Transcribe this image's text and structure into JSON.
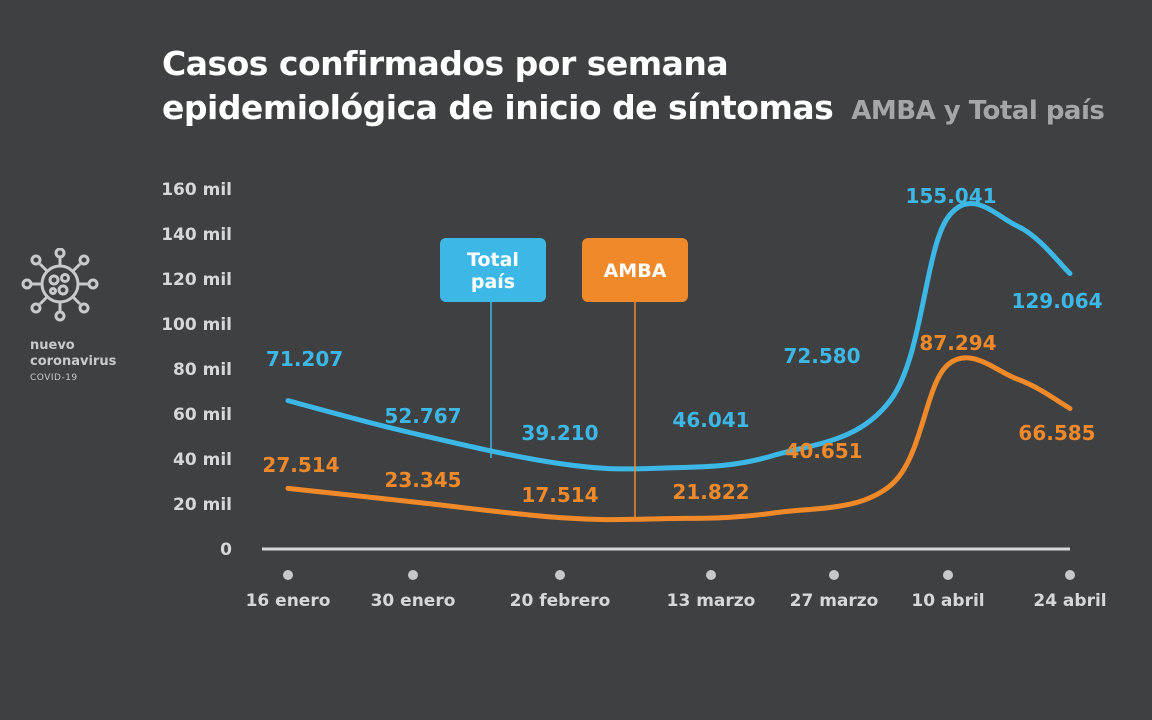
{
  "title": {
    "line1": "Casos confirmados por semana",
    "line2": "epidemiológica de inicio de síntomas",
    "subtitle": "AMBA y Total país"
  },
  "logo": {
    "icon": "virus-icon",
    "line1": "nuevo",
    "line2": "coronavirus",
    "line3": "COVID-19"
  },
  "colors": {
    "background": "#3f4042",
    "total": "#3db8e6",
    "amba": "#f0892a",
    "axis": "#d6d7d9",
    "tick_text": "#d6d7d9"
  },
  "chart_data": {
    "type": "line",
    "y_tick_labels": [
      "0",
      "20 mil",
      "40 mil",
      "60 mil",
      "80 mil",
      "100 mil",
      "120 mil",
      "140 mil",
      "160 mil"
    ],
    "ylim": [
      0,
      160000
    ],
    "categories": [
      "16 enero",
      "30 enero",
      "20 febrero",
      "13 marzo",
      "27 marzo",
      "10 abril",
      "24 abril"
    ],
    "series": [
      {
        "name": "Total país",
        "color": "#3db8e6",
        "labels": [
          "71.207",
          "52.767",
          "39.210",
          "46.041",
          "72.580",
          "155.041",
          "129.064"
        ],
        "curve": [
          [
            "2021-01-16",
            65500
          ],
          [
            "2021-01-30",
            51000
          ],
          [
            "2021-02-20",
            37500
          ],
          [
            "2021-03-06",
            35500
          ],
          [
            "2021-03-20",
            41000
          ],
          [
            "2021-04-03",
            66000
          ],
          [
            "2021-04-10",
            147000
          ],
          [
            "2021-04-18",
            143000
          ],
          [
            "2021-04-24",
            122000
          ]
        ]
      },
      {
        "name": "AMBA",
        "color": "#f0892a",
        "labels": [
          "27.514",
          "23.345",
          "17.514",
          "21.822",
          "40.651",
          "87.294",
          "66.585"
        ],
        "curve": [
          [
            "2021-01-16",
            26500
          ],
          [
            "2021-01-30",
            20500
          ],
          [
            "2021-02-20",
            13500
          ],
          [
            "2021-03-06",
            13000
          ],
          [
            "2021-03-20",
            15500
          ],
          [
            "2021-04-03",
            28000
          ],
          [
            "2021-04-10",
            81500
          ],
          [
            "2021-04-18",
            75000
          ],
          [
            "2021-04-24",
            62000
          ]
        ]
      }
    ],
    "legend": [
      {
        "label": "Total\npaís",
        "series": "Total país",
        "color": "#3db8e6"
      },
      {
        "label": "AMBA",
        "series": "AMBA",
        "color": "#f0892a"
      }
    ]
  }
}
